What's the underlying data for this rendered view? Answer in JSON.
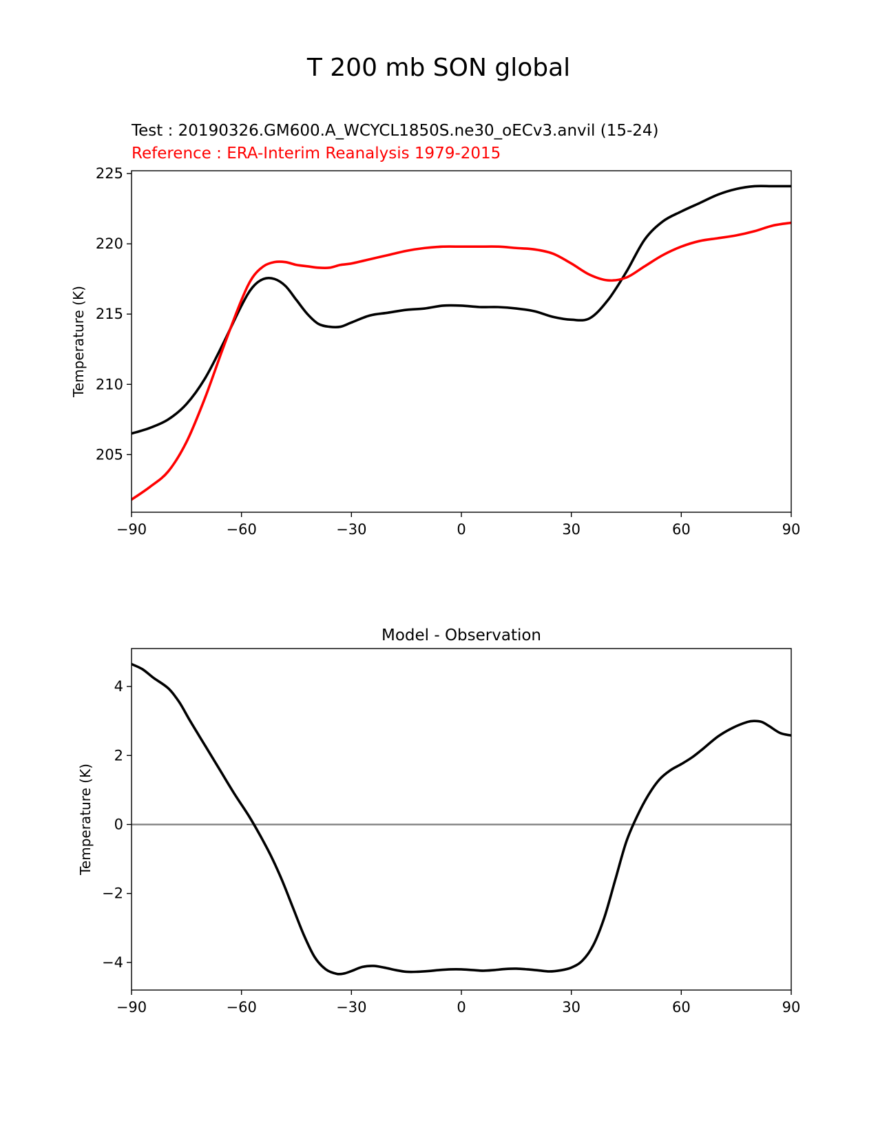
{
  "figure": {
    "title": "T 200 mb SON global",
    "test_label": "Test : 20190326.GM600.A_WCYCL1850S.ne30_oECv3.anvil (15-24)",
    "reference_label": "Reference : ERA-Interim Reanalysis 1979-2015",
    "test_color": "#000000",
    "reference_color": "#ff0000",
    "zero_line_color": "#808080"
  },
  "chart_data": [
    {
      "type": "line",
      "title": "",
      "xlabel": "",
      "ylabel": "Temperature (K)",
      "xlim": [
        -90,
        90
      ],
      "ylim": [
        200.9,
        225.2
      ],
      "xticks": [
        -90,
        -60,
        -30,
        0,
        30,
        60,
        90
      ],
      "xtick_labels": [
        "−90",
        "−60",
        "−30",
        "0",
        "30",
        "60",
        "90"
      ],
      "yticks": [
        205,
        210,
        215,
        220,
        225
      ],
      "ytick_labels": [
        "205",
        "210",
        "215",
        "220",
        "225"
      ],
      "series": [
        {
          "name": "Test",
          "color": "#000000",
          "x": [
            -90,
            -85,
            -80,
            -75,
            -70,
            -65,
            -60,
            -57,
            -54,
            -51,
            -48,
            -45,
            -42,
            -39,
            -36,
            -33,
            -30,
            -25,
            -20,
            -15,
            -10,
            -5,
            0,
            5,
            10,
            15,
            20,
            25,
            30,
            35,
            40,
            45,
            50,
            55,
            60,
            65,
            70,
            75,
            80,
            85,
            90
          ],
          "y": [
            206.5,
            206.9,
            207.5,
            208.6,
            210.4,
            212.9,
            215.6,
            216.9,
            217.5,
            217.5,
            217.0,
            216.0,
            215.0,
            214.3,
            214.1,
            214.1,
            214.4,
            214.9,
            215.1,
            215.3,
            215.4,
            215.6,
            215.6,
            215.5,
            215.5,
            215.4,
            215.2,
            214.8,
            214.6,
            214.7,
            216.0,
            218.0,
            220.3,
            221.6,
            222.3,
            222.9,
            223.5,
            223.9,
            224.1,
            224.1,
            224.1
          ]
        },
        {
          "name": "Reference",
          "color": "#ff0000",
          "x": [
            -90,
            -85,
            -80,
            -75,
            -70,
            -65,
            -60,
            -57,
            -54,
            -51,
            -48,
            -45,
            -42,
            -39,
            -36,
            -33,
            -30,
            -25,
            -20,
            -15,
            -10,
            -5,
            0,
            5,
            10,
            15,
            20,
            25,
            30,
            35,
            40,
            45,
            50,
            55,
            60,
            65,
            70,
            75,
            80,
            85,
            90
          ],
          "y": [
            201.8,
            202.7,
            203.8,
            205.9,
            209.0,
            212.6,
            216.0,
            217.6,
            218.4,
            218.7,
            218.7,
            218.5,
            218.4,
            218.3,
            218.3,
            218.5,
            218.6,
            218.9,
            219.2,
            219.5,
            219.7,
            219.8,
            219.8,
            219.8,
            219.8,
            219.7,
            219.6,
            219.3,
            218.6,
            217.8,
            217.4,
            217.6,
            218.4,
            219.2,
            219.8,
            220.2,
            220.4,
            220.6,
            220.9,
            221.3,
            221.5
          ]
        }
      ]
    },
    {
      "type": "line",
      "title": "Model - Observation",
      "xlabel": "",
      "ylabel": "Temperature (K)",
      "xlim": [
        -90,
        90
      ],
      "ylim": [
        -4.8,
        5.1
      ],
      "xticks": [
        -90,
        -60,
        -30,
        0,
        30,
        60,
        90
      ],
      "xtick_labels": [
        "−90",
        "−60",
        "−30",
        "0",
        "30",
        "60",
        "90"
      ],
      "yticks": [
        -4,
        -2,
        0,
        2,
        4
      ],
      "ytick_labels": [
        "−4",
        "−2",
        "0",
        "2",
        "4"
      ],
      "zero_line": 0,
      "series": [
        {
          "name": "Model - Observation",
          "color": "#000000",
          "x": [
            -90,
            -87,
            -84,
            -80,
            -77,
            -74,
            -70,
            -66,
            -62,
            -58,
            -55,
            -52,
            -49,
            -46,
            -43,
            -40,
            -37,
            -34,
            -32,
            -30,
            -27,
            -24,
            -21,
            -18,
            -15,
            -12,
            -9,
            -6,
            -3,
            0,
            3,
            6,
            9,
            12,
            15,
            18,
            21,
            24,
            27,
            30,
            33,
            36,
            39,
            42,
            45,
            48,
            51,
            54,
            57,
            60,
            63,
            66,
            70,
            74,
            78,
            80,
            82,
            84,
            87,
            90
          ],
          "y": [
            4.65,
            4.5,
            4.25,
            3.95,
            3.55,
            3.0,
            2.3,
            1.6,
            0.9,
            0.25,
            -0.3,
            -0.9,
            -1.6,
            -2.4,
            -3.2,
            -3.85,
            -4.2,
            -4.33,
            -4.32,
            -4.25,
            -4.13,
            -4.1,
            -4.15,
            -4.22,
            -4.27,
            -4.27,
            -4.25,
            -4.22,
            -4.2,
            -4.2,
            -4.22,
            -4.24,
            -4.22,
            -4.19,
            -4.18,
            -4.2,
            -4.23,
            -4.26,
            -4.23,
            -4.15,
            -3.95,
            -3.5,
            -2.7,
            -1.6,
            -0.5,
            0.25,
            0.85,
            1.3,
            1.57,
            1.75,
            1.95,
            2.2,
            2.55,
            2.8,
            2.97,
            3.0,
            2.97,
            2.85,
            2.65,
            2.58
          ]
        }
      ]
    }
  ]
}
